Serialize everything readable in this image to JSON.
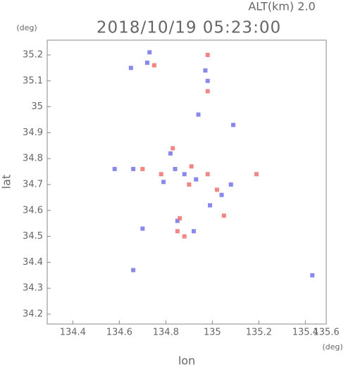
{
  "chart_data": {
    "type": "scatter",
    "title": "2018/10/19 05:23:00",
    "subtitle": "ALT(km) 2.0",
    "x_label": "lon",
    "y_label": "lat",
    "x_unit": "(deg)",
    "y_unit": "(deg)",
    "xlim": [
      134.29,
      135.49
    ],
    "ylim": [
      34.162,
      35.257
    ],
    "xticks": [
      134.4,
      134.6,
      134.8,
      135.0,
      135.2,
      135.4,
      135.6
    ],
    "yticks": [
      34.2,
      34.3,
      34.4,
      34.5,
      34.6,
      34.7,
      34.8,
      34.9,
      35.0,
      35.1,
      35.2
    ],
    "series": [
      {
        "color": "#7474ea",
        "x": [
          134.72,
          134.65,
          134.73,
          134.97,
          134.98,
          134.94,
          134.82,
          134.84,
          134.58,
          134.66,
          134.88,
          134.93,
          135.04,
          134.99,
          134.92,
          134.85,
          134.66,
          134.7,
          135.08,
          134.79,
          135.09,
          135.43
        ],
        "y": [
          35.17,
          35.15,
          35.21,
          35.14,
          35.1,
          34.97,
          34.82,
          34.76,
          34.76,
          34.76,
          34.74,
          34.72,
          34.66,
          34.62,
          34.52,
          34.56,
          34.37,
          34.53,
          34.7,
          34.71,
          34.93,
          34.35
        ]
      },
      {
        "color": "#f07070",
        "x": [
          134.75,
          134.98,
          134.98,
          134.83,
          134.78,
          134.9,
          135.05,
          134.85,
          134.88,
          134.98,
          135.19,
          134.86,
          134.91,
          135.02,
          134.7
        ],
        "y": [
          35.16,
          35.06,
          35.2,
          34.84,
          34.74,
          34.7,
          34.58,
          34.52,
          34.5,
          34.74,
          34.74,
          34.57,
          34.77,
          34.68,
          34.76
        ]
      }
    ]
  }
}
